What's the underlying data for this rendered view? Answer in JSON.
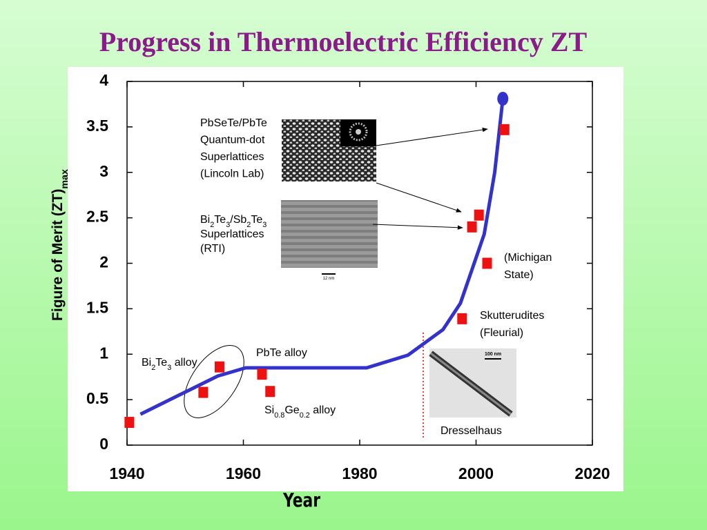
{
  "chart_data": {
    "type": "scatter",
    "title": "Progress in Thermoelectric Efficiency ZT",
    "x_label": "Year",
    "y_label": [
      "Figure of Merit (ZT)",
      "max"
    ],
    "xlim": [
      1940,
      2020
    ],
    "xticks": [
      1940,
      1960,
      1980,
      2000,
      2020
    ],
    "ylim": [
      0,
      4
    ],
    "yticks": [
      0,
      0.5,
      1,
      1.5,
      2,
      2.5,
      3,
      3.5,
      4
    ],
    "points": {
      "color": "#ee1111",
      "x": [
        1940.4,
        1953.1,
        1955.9,
        1963.2,
        1964.6,
        1997.6,
        1999.3,
        2000.5,
        2001.9,
        2004.9
      ],
      "y": [
        0.25,
        0.58,
        0.86,
        0.78,
        0.59,
        1.39,
        2.4,
        2.53,
        2.0,
        3.47
      ]
    },
    "trend": {
      "color": "#3333cc",
      "x": [
        1942.3,
        1955.6,
        1960.4,
        1981.2,
        1988.3,
        1994.3,
        1997.3,
        2001.4,
        2003.2,
        2004.6
      ],
      "y": [
        0.34,
        0.76,
        0.85,
        0.85,
        0.99,
        1.27,
        1.56,
        2.32,
        3.0,
        3.81
      ]
    },
    "annotations": [
      [
        [
          "PbSeTe/PbTe"
        ],
        [
          "Quantum-dot"
        ],
        [
          "Superlattices"
        ],
        [
          "(Lincoln Lab)"
        ]
      ],
      [
        [
          "Bi",
          "2",
          "Te",
          "3",
          "/Sb",
          "2",
          "Te",
          "3"
        ],
        [
          "Superlattices"
        ],
        [
          "(RTI)"
        ]
      ],
      [
        [
          "(Michigan"
        ],
        [
          "State)"
        ]
      ],
      [
        [
          "Skutterudites"
        ],
        [
          "(Fleurial)"
        ]
      ],
      [
        [
          "PbTe alloy"
        ]
      ],
      [
        [
          "Bi",
          "2",
          "Te",
          "3",
          " alloy"
        ]
      ],
      [
        [
          "Si",
          "0.8",
          "Ge",
          "0.2",
          " alloy"
        ]
      ],
      [
        [
          "Dresselhaus"
        ]
      ]
    ],
    "inset_labels": [
      "12 nm",
      "100 nm"
    ]
  }
}
